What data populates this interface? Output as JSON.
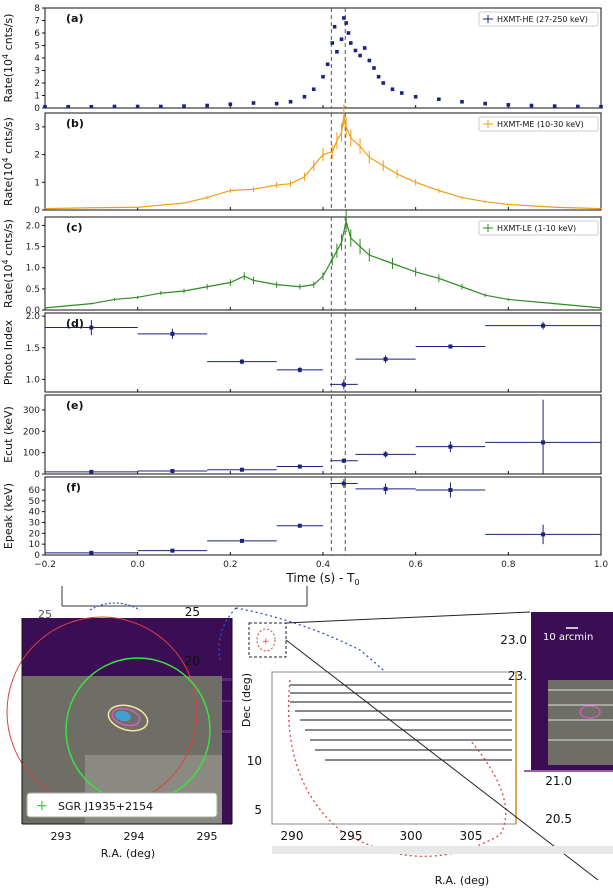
{
  "chart_data": {
    "type": "scatter",
    "dashed_lines_x": [
      0.418,
      0.448
    ],
    "x_ticks": [
      "−0.2",
      "0.0",
      "0.2",
      "0.4",
      "0.6",
      "0.8",
      "1.0"
    ],
    "x_label": "Time (s) - T",
    "x_label_sub": "0",
    "xlim": [
      -0.2,
      1.0
    ],
    "panels": [
      {
        "label": "(a)",
        "ylabel": "Rate(10",
        "ylabel_sup": "4",
        "ylabel_tail": " cnts/s)",
        "legend": "HXMT-HE (27-250 keV)",
        "color": "#1a237e",
        "style": "points",
        "ylim": [
          0,
          8
        ],
        "yticks": [
          "0",
          "1",
          "2",
          "3",
          "4",
          "5",
          "6",
          "7",
          "8"
        ],
        "points": [
          [
            -0.2,
            0.1
          ],
          [
            -0.15,
            0.1
          ],
          [
            -0.1,
            0.1
          ],
          [
            -0.05,
            0.12
          ],
          [
            0.0,
            0.12
          ],
          [
            0.05,
            0.12
          ],
          [
            0.1,
            0.15
          ],
          [
            0.15,
            0.2
          ],
          [
            0.2,
            0.3
          ],
          [
            0.25,
            0.4
          ],
          [
            0.3,
            0.35
          ],
          [
            0.33,
            0.5
          ],
          [
            0.36,
            0.9
          ],
          [
            0.38,
            1.5
          ],
          [
            0.4,
            2.5
          ],
          [
            0.41,
            3.5
          ],
          [
            0.42,
            5.2
          ],
          [
            0.425,
            6.5
          ],
          [
            0.43,
            4.5
          ],
          [
            0.44,
            5.5
          ],
          [
            0.445,
            7.2
          ],
          [
            0.45,
            6.8
          ],
          [
            0.455,
            6.0
          ],
          [
            0.46,
            5.2
          ],
          [
            0.47,
            4.6
          ],
          [
            0.48,
            4.2
          ],
          [
            0.49,
            4.8
          ],
          [
            0.5,
            3.8
          ],
          [
            0.51,
            3.2
          ],
          [
            0.52,
            2.5
          ],
          [
            0.53,
            2.0
          ],
          [
            0.55,
            1.5
          ],
          [
            0.57,
            1.2
          ],
          [
            0.6,
            0.9
          ],
          [
            0.65,
            0.7
          ],
          [
            0.7,
            0.5
          ],
          [
            0.75,
            0.35
          ],
          [
            0.8,
            0.25
          ],
          [
            0.85,
            0.2
          ],
          [
            0.9,
            0.15
          ],
          [
            0.95,
            0.12
          ],
          [
            1.0,
            0.1
          ]
        ]
      },
      {
        "label": "(b)",
        "ylabel": "Rate(10",
        "ylabel_sup": "4",
        "ylabel_tail": " cnts/s)",
        "legend": "HXMT-ME (10-30 keV)",
        "color": "#f39c12",
        "style": "line",
        "ylim": [
          0,
          3.5
        ],
        "yticks": [
          "0",
          "1",
          "2",
          "3"
        ],
        "points": [
          [
            -0.2,
            0.05
          ],
          [
            -0.1,
            0.08
          ],
          [
            0.0,
            0.1
          ],
          [
            0.1,
            0.25
          ],
          [
            0.15,
            0.45
          ],
          [
            0.2,
            0.7
          ],
          [
            0.25,
            0.75
          ],
          [
            0.3,
            0.9
          ],
          [
            0.33,
            0.95
          ],
          [
            0.36,
            1.2
          ],
          [
            0.38,
            1.6
          ],
          [
            0.4,
            2.0
          ],
          [
            0.42,
            2.1
          ],
          [
            0.43,
            2.5
          ],
          [
            0.44,
            2.8
          ],
          [
            0.445,
            3.4
          ],
          [
            0.45,
            3.0
          ],
          [
            0.46,
            2.6
          ],
          [
            0.48,
            2.3
          ],
          [
            0.5,
            1.9
          ],
          [
            0.53,
            1.6
          ],
          [
            0.56,
            1.3
          ],
          [
            0.6,
            1.0
          ],
          [
            0.65,
            0.7
          ],
          [
            0.7,
            0.45
          ],
          [
            0.75,
            0.3
          ],
          [
            0.8,
            0.2
          ],
          [
            0.9,
            0.1
          ],
          [
            1.0,
            0.05
          ]
        ]
      },
      {
        "label": "(c)",
        "ylabel": "Rate(10",
        "ylabel_sup": "4",
        "ylabel_tail": " cnts/s)",
        "legend": "HXMT-LE (1-10 keV)",
        "color": "#2e8b22",
        "style": "line",
        "ylim": [
          0,
          2.2
        ],
        "yticks": [
          "0.0",
          "0.5",
          "1.0",
          "1.5",
          "2.0"
        ],
        "points": [
          [
            -0.2,
            0.05
          ],
          [
            -0.15,
            0.1
          ],
          [
            -0.1,
            0.15
          ],
          [
            -0.05,
            0.25
          ],
          [
            0.0,
            0.3
          ],
          [
            0.05,
            0.4
          ],
          [
            0.1,
            0.45
          ],
          [
            0.15,
            0.55
          ],
          [
            0.2,
            0.65
          ],
          [
            0.23,
            0.8
          ],
          [
            0.25,
            0.7
          ],
          [
            0.3,
            0.6
          ],
          [
            0.35,
            0.55
          ],
          [
            0.38,
            0.6
          ],
          [
            0.4,
            0.8
          ],
          [
            0.42,
            1.2
          ],
          [
            0.43,
            1.4
          ],
          [
            0.44,
            1.6
          ],
          [
            0.45,
            2.1
          ],
          [
            0.46,
            1.7
          ],
          [
            0.48,
            1.5
          ],
          [
            0.5,
            1.3
          ],
          [
            0.55,
            1.1
          ],
          [
            0.6,
            0.9
          ],
          [
            0.65,
            0.75
          ],
          [
            0.7,
            0.55
          ],
          [
            0.75,
            0.35
          ],
          [
            0.8,
            0.25
          ],
          [
            0.9,
            0.15
          ],
          [
            1.0,
            0.05
          ]
        ]
      },
      {
        "label": "(d)",
        "ylabel": "Photo Index",
        "color": "#1a237e",
        "style": "errbars",
        "ylim": [
          0.8,
          2.05
        ],
        "yticks": [
          "1.0",
          "1.5",
          "2.0"
        ],
        "points": [
          [
            -0.1,
            1.82,
            0.1,
            0.12
          ],
          [
            0.075,
            1.72,
            0.075,
            0.08
          ],
          [
            0.225,
            1.28,
            0.075,
            0.04
          ],
          [
            0.35,
            1.15,
            0.05,
            0.04
          ],
          [
            0.445,
            0.92,
            0.03,
            0.08
          ],
          [
            0.535,
            1.32,
            0.065,
            0.06
          ],
          [
            0.675,
            1.52,
            0.075,
            0.03
          ],
          [
            0.875,
            1.85,
            0.125,
            0.06
          ]
        ]
      },
      {
        "label": "(e)",
        "ylabel": "Ecut (keV)",
        "color": "#1a237e",
        "style": "errbars",
        "ylim": [
          0,
          370
        ],
        "yticks": [
          "0",
          "100",
          "200",
          "300"
        ],
        "points": [
          [
            -0.1,
            10,
            0.1,
            5
          ],
          [
            0.075,
            14,
            0.075,
            5
          ],
          [
            0.225,
            20,
            0.075,
            5
          ],
          [
            0.35,
            35,
            0.05,
            6
          ],
          [
            0.445,
            62,
            0.03,
            10
          ],
          [
            0.535,
            92,
            0.065,
            15
          ],
          [
            0.675,
            128,
            0.075,
            25
          ],
          [
            0.875,
            148,
            0.125,
            200
          ]
        ]
      },
      {
        "label": "(f)",
        "ylabel": "Epeak (keV)",
        "color": "#1a237e",
        "style": "errbars",
        "ylim": [
          0,
          72
        ],
        "yticks": [
          "0",
          "10",
          "20",
          "30",
          "40",
          "50",
          "60"
        ],
        "points": [
          [
            -0.1,
            2,
            0.1,
            1
          ],
          [
            0.075,
            4,
            0.075,
            1
          ],
          [
            0.225,
            13,
            0.075,
            1.5
          ],
          [
            0.35,
            27,
            0.05,
            1.5
          ],
          [
            0.445,
            66,
            0.03,
            4
          ],
          [
            0.535,
            61,
            0.065,
            5
          ],
          [
            0.675,
            60,
            0.075,
            7
          ],
          [
            0.875,
            19,
            0.125,
            9
          ]
        ]
      }
    ]
  },
  "inset_left": {
    "legend": "SGR J1935+2154",
    "x_ticks": [
      "293",
      "294",
      "295"
    ],
    "x_label": "R.A. (deg)",
    "corner_tick": "25"
  },
  "inset_mid": {
    "y_ticks": [
      "25",
      "20",
      "10",
      "5"
    ],
    "y_label": "Dec (deg)",
    "x_ticks": [
      "290",
      "295",
      "300",
      "305"
    ],
    "x_label": "R.A. (deg)"
  },
  "inset_right": {
    "scale_label": "10 arcmin",
    "y_ticks": [
      "23.0",
      "23.",
      "21.0",
      "20.5"
    ]
  }
}
